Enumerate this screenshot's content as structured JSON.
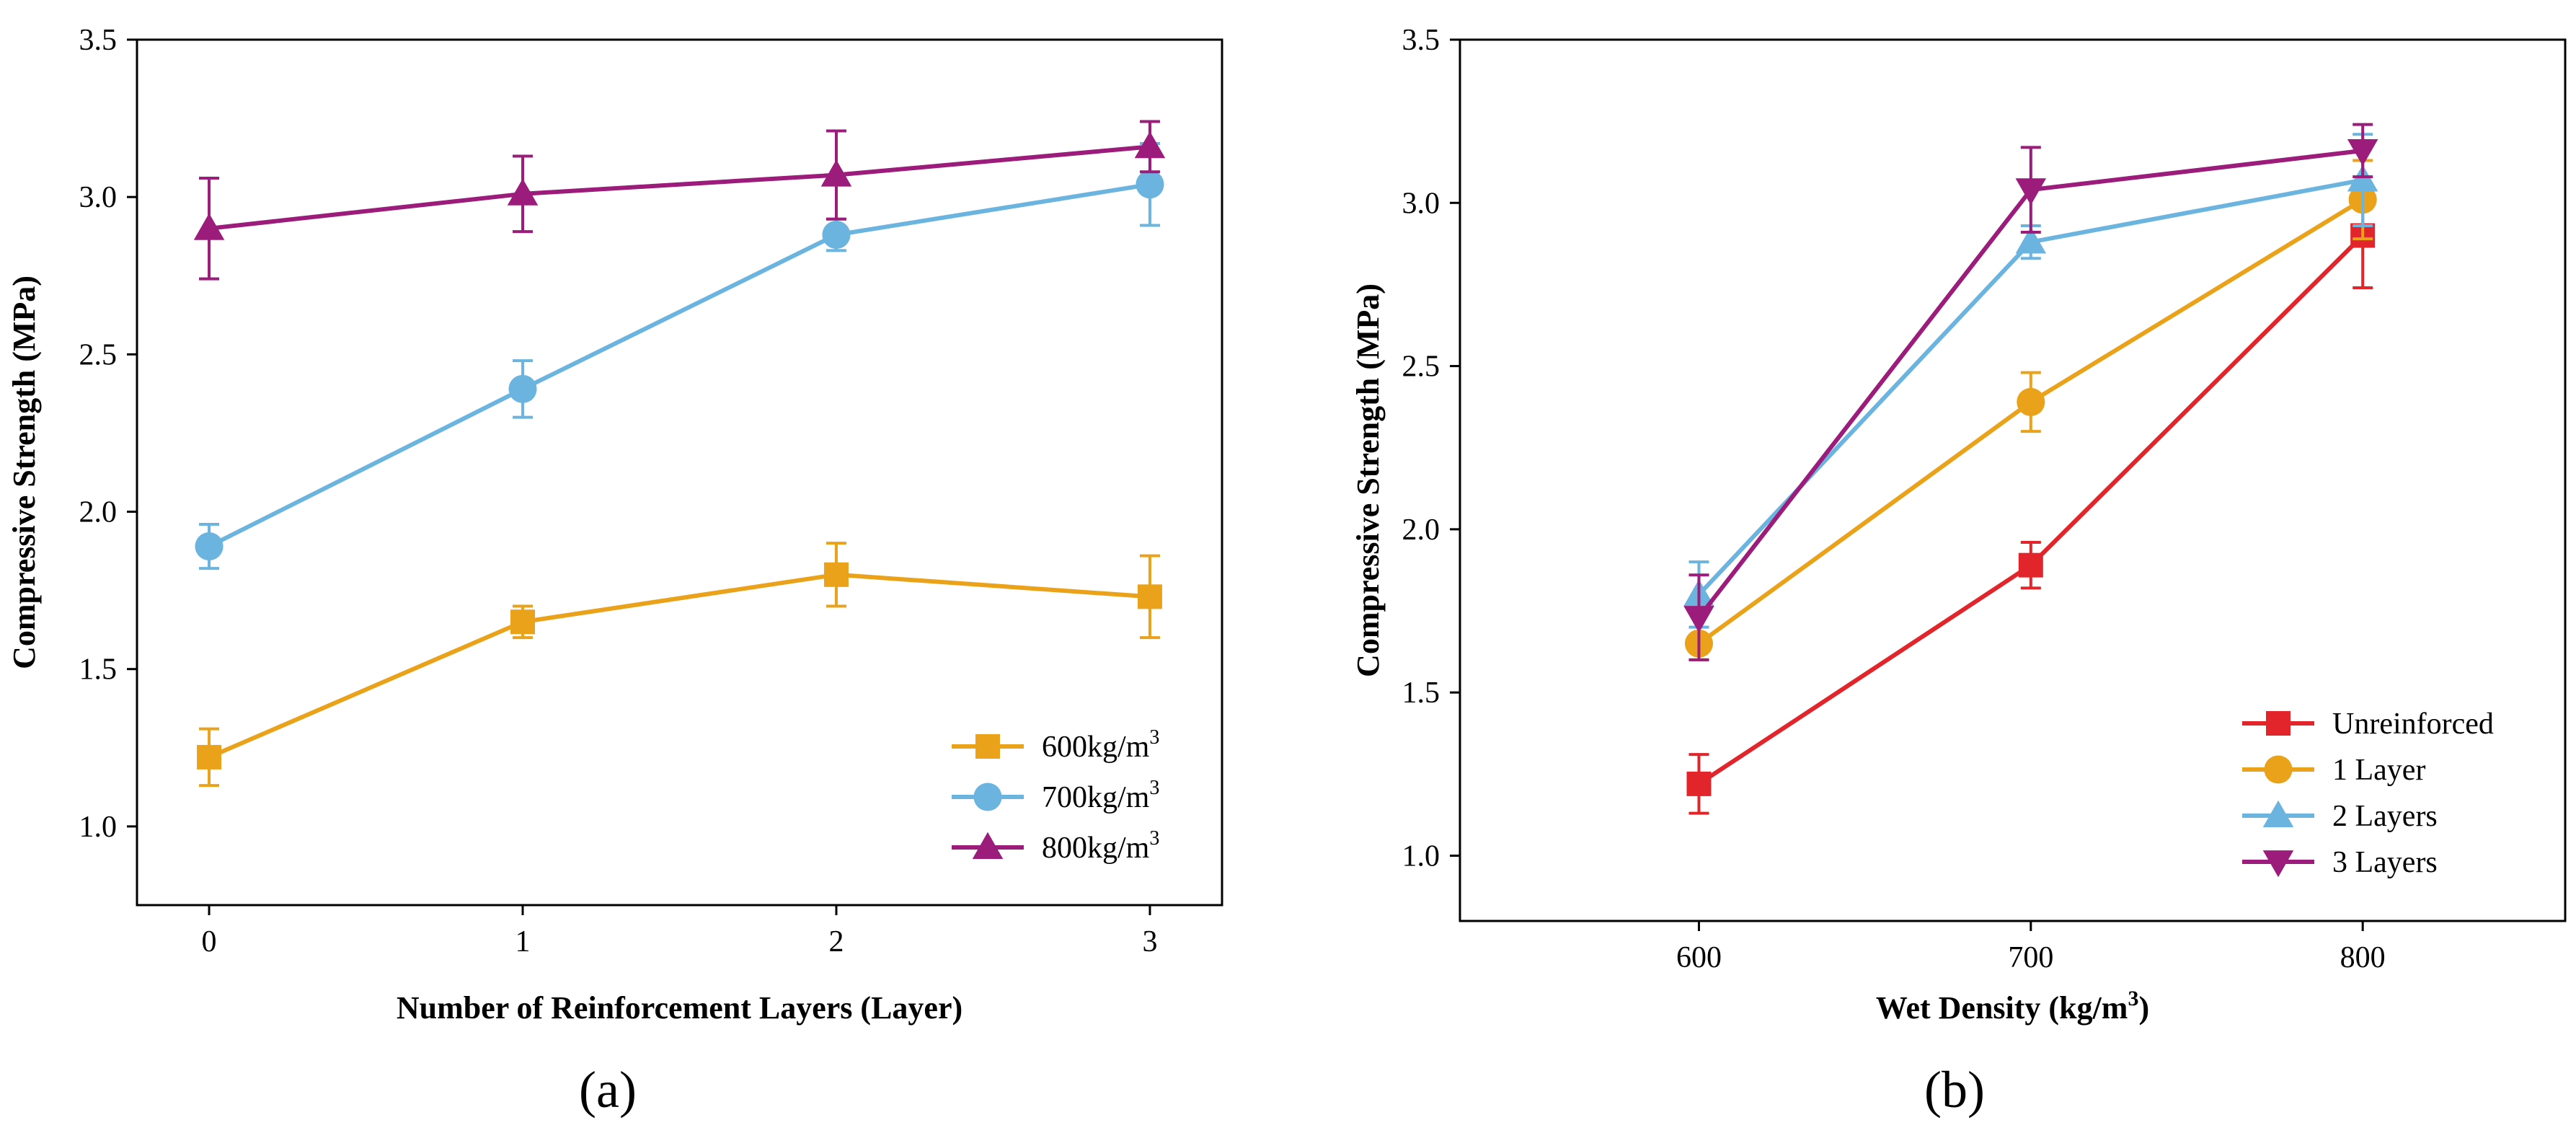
{
  "chart_data": [
    {
      "type": "line",
      "panel_label": "(a)",
      "xlabel": "Number of Reinforcement Layers (Layer)",
      "ylabel": "Compressive Strength (MPa)",
      "xlim": [
        -0.23,
        3.23
      ],
      "ylim": [
        0.75,
        3.5
      ],
      "xticks": [
        0,
        1,
        2,
        3
      ],
      "xtick_labels": [
        "0",
        "1",
        "2",
        "3"
      ],
      "yticks": [
        1.0,
        1.5,
        2.0,
        2.5,
        3.0,
        3.5
      ],
      "ytick_labels": [
        "1.0",
        "1.5",
        "2.0",
        "2.5",
        "3.0",
        "3.5"
      ],
      "legend_position": "bottom-right",
      "series": [
        {
          "name": "600kg/m",
          "sup": "3",
          "color": "#EBA21B",
          "marker": "square",
          "x": [
            0,
            1,
            2,
            3
          ],
          "values": [
            1.22,
            1.65,
            1.8,
            1.73
          ],
          "errors": [
            0.09,
            0.05,
            0.1,
            0.13
          ]
        },
        {
          "name": "700kg/m",
          "sup": "3",
          "color": "#6CB4E0",
          "marker": "circle",
          "x": [
            0,
            1,
            2,
            3
          ],
          "values": [
            1.89,
            2.39,
            2.88,
            3.04
          ],
          "errors": [
            0.07,
            0.09,
            0.05,
            0.13
          ]
        },
        {
          "name": "800kg/m",
          "sup": "3",
          "color": "#9B1C7A",
          "marker": "triangle-up",
          "x": [
            0,
            1,
            2,
            3
          ],
          "values": [
            2.9,
            3.01,
            3.07,
            3.16
          ],
          "errors": [
            0.16,
            0.12,
            0.14,
            0.08
          ]
        }
      ]
    },
    {
      "type": "line",
      "panel_label": "(b)",
      "xlabel": "Wet Density (kg/m",
      "xlabel_sup": "3",
      "xlabel_suffix": ")",
      "ylabel": "Compressive Strength (MPa)",
      "xlim": [
        528,
        861
      ],
      "ylim": [
        0.8,
        3.5
      ],
      "xticks": [
        600,
        700,
        800
      ],
      "xtick_labels": [
        "600",
        "700",
        "800"
      ],
      "yticks": [
        1.0,
        1.5,
        2.0,
        2.5,
        3.0,
        3.5
      ],
      "ytick_labels": [
        "1.0",
        "1.5",
        "2.0",
        "2.5",
        "3.0",
        "3.5"
      ],
      "legend_position": "bottom-right",
      "series": [
        {
          "name": "Unreinforced",
          "sup": "",
          "color": "#E1252B",
          "marker": "square",
          "x": [
            600,
            700,
            800
          ],
          "values": [
            1.22,
            1.89,
            2.9
          ],
          "errors": [
            0.09,
            0.07,
            0.16
          ]
        },
        {
          "name": "1 Layer",
          "sup": "",
          "color": "#EBA21B",
          "marker": "circle",
          "x": [
            600,
            700,
            800
          ],
          "values": [
            1.65,
            2.39,
            3.01
          ],
          "errors": [
            0.05,
            0.09,
            0.12
          ]
        },
        {
          "name": "2 Layers",
          "sup": "",
          "color": "#6CB4E0",
          "marker": "triangle-up",
          "x": [
            600,
            700,
            800
          ],
          "values": [
            1.8,
            2.88,
            3.07
          ],
          "errors": [
            0.1,
            0.05,
            0.14
          ]
        },
        {
          "name": "3 Layers",
          "sup": "",
          "color": "#9B1C7A",
          "marker": "triangle-down",
          "x": [
            600,
            700,
            800
          ],
          "values": [
            1.73,
            3.04,
            3.16
          ],
          "errors": [
            0.13,
            0.13,
            0.08
          ]
        }
      ]
    }
  ]
}
